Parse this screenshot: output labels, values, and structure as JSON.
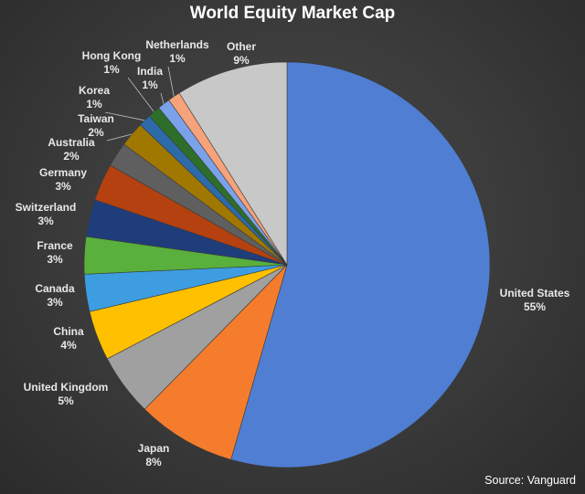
{
  "chart_data": {
    "type": "pie",
    "title": "World Equity Market Cap",
    "source": "Source: Vanguard",
    "start_angle_deg": 0,
    "direction": "clockwise",
    "slices": [
      {
        "name": "United States",
        "label": "55%",
        "value": 55,
        "color": "#4f7ed3"
      },
      {
        "name": "Japan",
        "label": "8%",
        "value": 8,
        "color": "#f57c2c"
      },
      {
        "name": "United Kingdom",
        "label": "5%",
        "value": 5,
        "color": "#a0a0a0"
      },
      {
        "name": "China",
        "label": "4%",
        "value": 4,
        "color": "#ffc000"
      },
      {
        "name": "Canada",
        "label": "3%",
        "value": 3,
        "color": "#3d9de0"
      },
      {
        "name": "France",
        "label": "3%",
        "value": 3,
        "color": "#59b03c"
      },
      {
        "name": "Switzerland",
        "label": "3%",
        "value": 3,
        "color": "#1f3d7a"
      },
      {
        "name": "Germany",
        "label": "3%",
        "value": 3,
        "color": "#b4410f"
      },
      {
        "name": "Australia",
        "label": "2%",
        "value": 2,
        "color": "#5f5f5f"
      },
      {
        "name": "Taiwan",
        "label": "2%",
        "value": 2,
        "color": "#a07800"
      },
      {
        "name": "Korea",
        "label": "1%",
        "value": 1,
        "color": "#2d6aa8"
      },
      {
        "name": "Hong Kong",
        "label": "1%",
        "value": 1,
        "color": "#2e6e2b"
      },
      {
        "name": "India",
        "label": "1%",
        "value": 1,
        "color": "#7ba2e8"
      },
      {
        "name": "Netherlands",
        "label": "1%",
        "value": 1,
        "color": "#f6a27a"
      },
      {
        "name": "Other",
        "label": "9%",
        "value": 9,
        "color": "#c8c8c8"
      }
    ]
  }
}
